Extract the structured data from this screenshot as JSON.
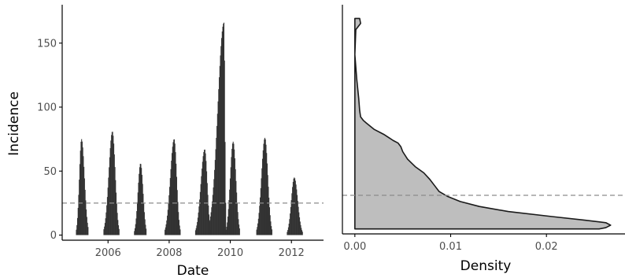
{
  "chart_data": [
    {
      "type": "bar",
      "xlabel": "Date",
      "ylabel": "Incidence",
      "xlim": [
        2004.5,
        2013.05
      ],
      "ylim": [
        -4,
        180
      ],
      "x_ticks": [
        2006,
        2008,
        2010,
        2012
      ],
      "x_tick_labels": [
        "2006",
        "2008",
        "2010",
        "2012"
      ],
      "y_ticks": [
        0,
        50,
        100,
        150
      ],
      "y_tick_labels": [
        "0",
        "50",
        "100",
        "150"
      ],
      "threshold": 25,
      "threshold_style": "dashed",
      "grid": false,
      "bar_color": "#333333",
      "epidemics": [
        {
          "start": 2004.95,
          "end": 2005.35,
          "peak_time": 2005.12,
          "peak": 75
        },
        {
          "start": 2005.85,
          "end": 2006.35,
          "peak_time": 2006.13,
          "peak": 81
        },
        {
          "start": 2006.85,
          "end": 2007.25,
          "peak_time": 2007.05,
          "peak": 56
        },
        {
          "start": 2007.85,
          "end": 2008.35,
          "peak_time": 2008.15,
          "peak": 75
        },
        {
          "start": 2008.85,
          "end": 2009.35,
          "peak_time": 2009.15,
          "peak": 67
        },
        {
          "start": 2009.3,
          "end": 2009.85,
          "peak_time": 2009.78,
          "peak": 166
        },
        {
          "start": 2009.85,
          "end": 2010.3,
          "peak_time": 2010.08,
          "peak": 73
        },
        {
          "start": 2010.85,
          "end": 2011.35,
          "peak_time": 2011.12,
          "peak": 76
        },
        {
          "start": 2011.85,
          "end": 2012.35,
          "peak_time": 2012.08,
          "peak": 45
        }
      ]
    },
    {
      "type": "area",
      "xlabel": "Density",
      "ylabel": "",
      "xlim": [
        -0.0013,
        0.0282
      ],
      "ylim": [
        -4,
        180
      ],
      "x_ticks": [
        0.0,
        0.01,
        0.02
      ],
      "x_tick_labels": [
        "0.00",
        "0.01",
        "0.02"
      ],
      "threshold": 27,
      "threshold_style": "dashed",
      "grid": false,
      "fill_color": "#bebebe",
      "line_color": "#1a1a1a",
      "density_curve": [
        {
          "incidence": 169,
          "density": 0.0005
        },
        {
          "incidence": 165,
          "density": 0.0006
        },
        {
          "incidence": 160,
          "density": 0.0001
        },
        {
          "incidence": 140,
          "density": 0.0
        },
        {
          "incidence": 120,
          "density": 0.0002
        },
        {
          "incidence": 105,
          "density": 0.0004
        },
        {
          "incidence": 95,
          "density": 0.0005
        },
        {
          "incidence": 90,
          "density": 0.0006
        },
        {
          "incidence": 87,
          "density": 0.0009
        },
        {
          "incidence": 85,
          "density": 0.0012
        },
        {
          "incidence": 80,
          "density": 0.002
        },
        {
          "incidence": 76,
          "density": 0.003
        },
        {
          "incidence": 73,
          "density": 0.0036
        },
        {
          "incidence": 71,
          "density": 0.004
        },
        {
          "incidence": 69,
          "density": 0.0045
        },
        {
          "incidence": 66,
          "density": 0.0048
        },
        {
          "incidence": 62,
          "density": 0.005
        },
        {
          "incidence": 56,
          "density": 0.0055
        },
        {
          "incidence": 50,
          "density": 0.0063
        },
        {
          "incidence": 45,
          "density": 0.0072
        },
        {
          "incidence": 40,
          "density": 0.0078
        },
        {
          "incidence": 35,
          "density": 0.0083
        },
        {
          "incidence": 30,
          "density": 0.0088
        },
        {
          "incidence": 26,
          "density": 0.0097
        },
        {
          "incidence": 22,
          "density": 0.011
        },
        {
          "incidence": 18,
          "density": 0.013
        },
        {
          "incidence": 14,
          "density": 0.016
        },
        {
          "incidence": 10,
          "density": 0.0205
        },
        {
          "incidence": 7,
          "density": 0.024
        },
        {
          "incidence": 5,
          "density": 0.0262
        },
        {
          "incidence": 3,
          "density": 0.0267
        },
        {
          "incidence": 1,
          "density": 0.0262
        },
        {
          "incidence": 0,
          "density": 0.0255
        }
      ]
    }
  ]
}
